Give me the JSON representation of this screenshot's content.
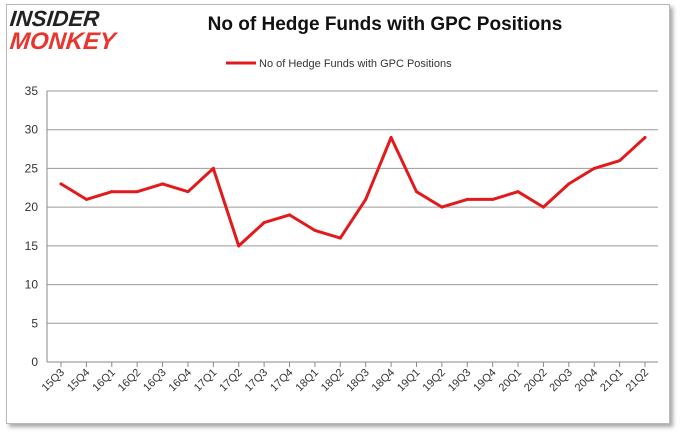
{
  "logo": {
    "top_text": "INSIDER",
    "bottom_text": "MONKEY"
  },
  "chart_data": {
    "type": "line",
    "title": "No of Hedge Funds with GPC Positions",
    "xlabel": "",
    "ylabel": "",
    "ylim": [
      0,
      35
    ],
    "yticks": [
      0,
      5,
      10,
      15,
      20,
      25,
      30,
      35
    ],
    "grid": true,
    "legend_position": "top-center",
    "categories": [
      "15Q3",
      "15Q4",
      "16Q1",
      "16Q2",
      "16Q3",
      "16Q4",
      "17Q1",
      "17Q2",
      "17Q3",
      "17Q4",
      "18Q1",
      "18Q2",
      "18Q3",
      "18Q4",
      "19Q1",
      "19Q2",
      "19Q3",
      "19Q4",
      "20Q1",
      "20Q2",
      "20Q3",
      "20Q4",
      "21Q1",
      "21Q2"
    ],
    "series": [
      {
        "name": "No of Hedge Funds with GPC Positions",
        "color": "#e31a1c",
        "values": [
          23,
          21,
          22,
          22,
          23,
          22,
          25,
          15,
          18,
          19,
          17,
          16,
          21,
          29,
          22,
          20,
          21,
          21,
          22,
          20,
          23,
          25,
          26,
          29
        ]
      }
    ]
  }
}
